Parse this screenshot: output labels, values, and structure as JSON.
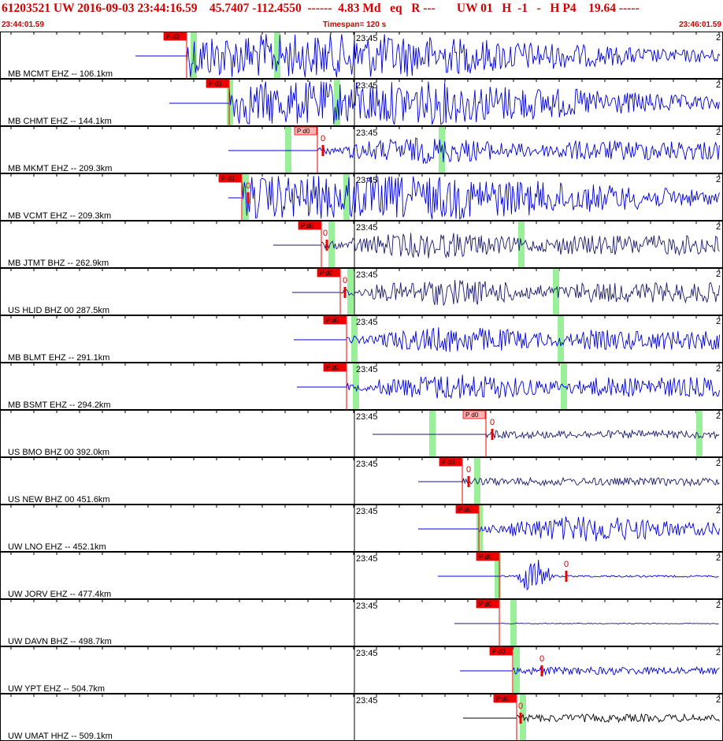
{
  "header": {
    "title": "61203521 UW 2016-09-03 23:44:16.59    45.7407 -112.4550  ------  4.83 Md   eq   R ---       UW 01   H  -1   -   H P4    19.64 -----",
    "start_time": "23:44:01.59",
    "timespan": "Timespan= 120 s",
    "end_time": "23:46:01.59"
  },
  "colors": {
    "header_text": "#d40000",
    "pick_red": "#ee0000",
    "pick_pink": "#ffb0b0",
    "trace_blue": "#0000dd",
    "trace_navy": "#1a1a6e",
    "trace_black": "#000000",
    "window_green": "#99f099"
  },
  "time_tick_label": "23:45",
  "panels": [
    {
      "label": "MB MCMT EHZ -- 106.1km",
      "pick": "P d0",
      "pick_style": "red",
      "show_zero": false,
      "color": "blue",
      "amp": "high",
      "edge": "2"
    },
    {
      "label": "MB CHMT EHZ -- 144.1km",
      "pick": "P d0",
      "pick_style": "red",
      "show_zero": false,
      "color": "blue",
      "amp": "high",
      "edge": "2"
    },
    {
      "label": "MB MKMT EHZ -- 209.3km",
      "pick": "P d0",
      "pick_style": "pink",
      "show_zero": true,
      "color": "blue",
      "amp": "medium",
      "edge": "2"
    },
    {
      "label": "MB VCMT EHZ -- 209.3km",
      "pick": "P d0",
      "pick_style": "red",
      "show_zero": true,
      "color": "blue",
      "amp": "high",
      "edge": "2"
    },
    {
      "label": "MB JTMT BHZ -- 262.9km",
      "pick": "P d0",
      "pick_style": "red",
      "show_zero": true,
      "color": "navy",
      "amp": "medium",
      "edge": "2"
    },
    {
      "label": "US HLID BHZ 00 287.5km",
      "pick": "P d0",
      "pick_style": "red",
      "show_zero": true,
      "color": "navy",
      "amp": "medium",
      "edge": "2"
    },
    {
      "label": "MB BLMT EHZ -- 291.1km",
      "pick": "P d0",
      "pick_style": "red",
      "show_zero": false,
      "color": "blue",
      "amp": "medium",
      "edge": "2"
    },
    {
      "label": "MB BSMT EHZ -- 294.2km",
      "pick": "P d0",
      "pick_style": "red",
      "show_zero": false,
      "color": "blue",
      "amp": "medium",
      "edge": "2"
    },
    {
      "label": "US BMO BHZ 00 392.0km",
      "pick": "P d0",
      "pick_style": "pink",
      "show_zero": true,
      "color": "navy",
      "amp": "low",
      "edge": "2"
    },
    {
      "label": "US NEW BHZ 00 451.6km",
      "pick": "P d0",
      "pick_style": "red",
      "show_zero": true,
      "color": "navy",
      "amp": "low",
      "edge": "2"
    },
    {
      "label": "UW LNO EHZ -- 452.1km",
      "pick": "P d0",
      "pick_style": "red",
      "show_zero": false,
      "color": "blue",
      "amp": "medium",
      "edge": "2"
    },
    {
      "label": "UW JORV EHZ -- 477.4km",
      "pick": "P d0",
      "pick_style": "red",
      "show_zero": true,
      "color": "blue",
      "amp": "burst",
      "edge": "2"
    },
    {
      "label": "UW DAVN BHZ -- 498.7km",
      "pick": "P d0",
      "pick_style": "red",
      "show_zero": false,
      "color": "navy",
      "amp": "flat",
      "edge": "2"
    },
    {
      "label": "UW YPT EHZ -- 504.7km",
      "pick": "P d0",
      "pick_style": "red",
      "show_zero": true,
      "color": "blue",
      "amp": "low",
      "edge": "2"
    },
    {
      "label": "UW UMAT HHZ -- 509.1km",
      "pick": "P d0",
      "pick_style": "red",
      "show_zero": true,
      "color": "black",
      "amp": "low",
      "edge": "2"
    }
  ]
}
